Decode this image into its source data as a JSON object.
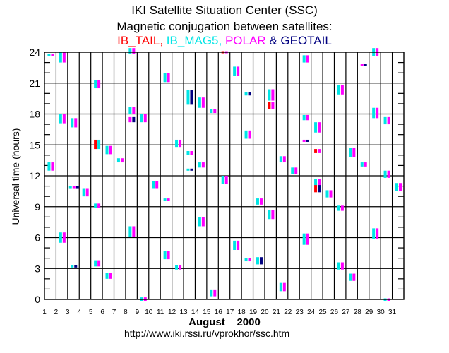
{
  "header": {
    "title": "IKI Satellite Situation Center (SSC)",
    "subtitle": "Magnetic conjugation between satellites:",
    "legend": [
      {
        "label": "IB_TAIL,",
        "color": "#ff0000"
      },
      {
        "label": "IB_MAG5,",
        "color": "#00e5e5"
      },
      {
        "label": "POLAR",
        "color": "#ff00ff"
      },
      {
        "label": "& GEOTAIL",
        "color": "#000080"
      }
    ]
  },
  "footer": {
    "url": "http://www.iki.rssi.ru/vprokhor/ssc.htm"
  },
  "chart_data": {
    "type": "scatter",
    "title": "Magnetic conjugation between satellites",
    "xlabel": "August    2000",
    "ylabel": "Universal time (hours)",
    "xlim": [
      1,
      32
    ],
    "ylim": [
      0,
      24
    ],
    "x_ticks": [
      1,
      2,
      3,
      4,
      5,
      6,
      7,
      8,
      9,
      10,
      11,
      12,
      13,
      14,
      15,
      16,
      17,
      18,
      19,
      20,
      21,
      22,
      23,
      24,
      25,
      26,
      27,
      28,
      29,
      30,
      31
    ],
    "y_ticks": [
      0,
      3,
      6,
      9,
      12,
      15,
      18,
      21,
      24
    ],
    "y_minor_step": 1,
    "grid": true,
    "colors": {
      "IB_TAIL": "#ff0000",
      "IB_MAG5": "#00e5e5",
      "POLAR": "#ff00ff",
      "GEOTAIL": "#000080"
    },
    "events": [
      {
        "day": 1.3,
        "start": 12.5,
        "end": 13.3,
        "sats": [
          "IB_MAG5",
          "POLAR"
        ]
      },
      {
        "day": 1.3,
        "start": 23.6,
        "end": 23.8,
        "sats": [
          "IB_MAG5",
          "POLAR"
        ]
      },
      {
        "day": 2.3,
        "start": 23.0,
        "end": 24.0,
        "sats": [
          "IB_MAG5",
          "POLAR"
        ]
      },
      {
        "day": 2.3,
        "start": 17.1,
        "end": 18.0,
        "sats": [
          "IB_MAG5",
          "POLAR"
        ]
      },
      {
        "day": 2.3,
        "start": 5.5,
        "end": 6.5,
        "sats": [
          "IB_MAG5",
          "POLAR"
        ]
      },
      {
        "day": 3.3,
        "start": 16.7,
        "end": 17.6,
        "sats": [
          "IB_MAG5",
          "POLAR"
        ]
      },
      {
        "day": 3.3,
        "start": 10.8,
        "end": 11.0,
        "sats": [
          "IB_MAG5",
          "POLAR",
          "GEOTAIL"
        ]
      },
      {
        "day": 3.3,
        "start": 3.1,
        "end": 3.3,
        "sats": [
          "IB_MAG5",
          "GEOTAIL"
        ]
      },
      {
        "day": 4.3,
        "start": 10.0,
        "end": 10.8,
        "sats": [
          "IB_MAG5",
          "POLAR"
        ]
      },
      {
        "day": 5.3,
        "start": 14.6,
        "end": 15.5,
        "sats": [
          "IB_TAIL",
          "IB_MAG5"
        ]
      },
      {
        "day": 5.3,
        "start": 20.5,
        "end": 21.3,
        "sats": [
          "IB_MAG5",
          "POLAR"
        ]
      },
      {
        "day": 5.3,
        "start": 8.9,
        "end": 9.3,
        "sats": [
          "IB_MAG5",
          "POLAR"
        ]
      },
      {
        "day": 5.3,
        "start": 3.2,
        "end": 3.8,
        "sats": [
          "IB_MAG5",
          "POLAR"
        ]
      },
      {
        "day": 6.3,
        "start": 14.1,
        "end": 14.9,
        "sats": [
          "IB_MAG5",
          "POLAR"
        ]
      },
      {
        "day": 6.3,
        "start": 2.0,
        "end": 2.6,
        "sats": [
          "IB_MAG5",
          "POLAR"
        ]
      },
      {
        "day": 7.3,
        "start": 13.3,
        "end": 13.7,
        "sats": [
          "IB_MAG5",
          "POLAR"
        ]
      },
      {
        "day": 8.3,
        "start": 23.8,
        "end": 24.4,
        "sats": [
          "IB_MAG5",
          "POLAR"
        ]
      },
      {
        "day": 8.3,
        "start": 18.0,
        "end": 18.7,
        "sats": [
          "IB_MAG5",
          "POLAR"
        ]
      },
      {
        "day": 8.3,
        "start": 17.2,
        "end": 17.7,
        "sats": [
          "POLAR",
          "GEOTAIL"
        ]
      },
      {
        "day": 8.3,
        "start": 6.1,
        "end": 7.1,
        "sats": [
          "IB_MAG5",
          "POLAR"
        ]
      },
      {
        "day": 9.3,
        "start": 17.2,
        "end": 18.0,
        "sats": [
          "IB_MAG5",
          "POLAR"
        ]
      },
      {
        "day": 9.3,
        "start": -0.2,
        "end": 0.2,
        "sats": [
          "IB_MAG5",
          "POLAR"
        ]
      },
      {
        "day": 10.3,
        "start": 10.8,
        "end": 11.5,
        "sats": [
          "IB_MAG5",
          "POLAR"
        ]
      },
      {
        "day": 11.3,
        "start": 21.1,
        "end": 22.0,
        "sats": [
          "IB_MAG5",
          "POLAR"
        ]
      },
      {
        "day": 11.3,
        "start": 9.6,
        "end": 9.8,
        "sats": [
          "IB_MAG5",
          "POLAR"
        ]
      },
      {
        "day": 11.3,
        "start": 3.9,
        "end": 4.7,
        "sats": [
          "IB_MAG5",
          "POLAR"
        ]
      },
      {
        "day": 12.3,
        "start": 14.8,
        "end": 15.5,
        "sats": [
          "IB_MAG5",
          "POLAR"
        ]
      },
      {
        "day": 12.3,
        "start": 2.9,
        "end": 3.3,
        "sats": [
          "IB_MAG5",
          "POLAR"
        ]
      },
      {
        "day": 13.3,
        "start": 14.0,
        "end": 14.4,
        "sats": [
          "IB_MAG5",
          "POLAR"
        ]
      },
      {
        "day": 13.3,
        "start": 12.5,
        "end": 12.7,
        "sats": [
          "IB_MAG5",
          "GEOTAIL"
        ]
      },
      {
        "day": 13.3,
        "start": 18.9,
        "end": 20.3,
        "sats": [
          "IB_MAG5",
          "GEOTAIL"
        ]
      },
      {
        "day": 14.3,
        "start": 18.6,
        "end": 19.6,
        "sats": [
          "IB_MAG5",
          "POLAR"
        ]
      },
      {
        "day": 14.3,
        "start": 12.8,
        "end": 13.3,
        "sats": [
          "IB_MAG5",
          "POLAR"
        ]
      },
      {
        "day": 14.3,
        "start": 7.1,
        "end": 8.0,
        "sats": [
          "IB_MAG5",
          "POLAR"
        ]
      },
      {
        "day": 15.3,
        "start": 18.1,
        "end": 18.5,
        "sats": [
          "IB_MAG5",
          "POLAR"
        ]
      },
      {
        "day": 15.3,
        "start": 0.3,
        "end": 0.9,
        "sats": [
          "IB_MAG5",
          "POLAR"
        ]
      },
      {
        "day": 16.3,
        "start": 23.9,
        "end": 24.1,
        "sats": [
          "IB_TAIL",
          "POLAR"
        ]
      },
      {
        "day": 16.3,
        "start": 11.2,
        "end": 12.0,
        "sats": [
          "IB_MAG5",
          "POLAR"
        ]
      },
      {
        "day": 17.3,
        "start": 21.7,
        "end": 22.6,
        "sats": [
          "IB_MAG5",
          "POLAR"
        ]
      },
      {
        "day": 17.3,
        "start": 4.8,
        "end": 5.7,
        "sats": [
          "IB_MAG5",
          "POLAR"
        ]
      },
      {
        "day": 18.3,
        "start": 15.6,
        "end": 16.4,
        "sats": [
          "IB_MAG5",
          "POLAR"
        ]
      },
      {
        "day": 18.3,
        "start": 3.7,
        "end": 4.0,
        "sats": [
          "IB_MAG5",
          "POLAR"
        ]
      },
      {
        "day": 18.3,
        "start": 19.8,
        "end": 20.1,
        "sats": [
          "IB_MAG5",
          "GEOTAIL"
        ]
      },
      {
        "day": 19.3,
        "start": 9.2,
        "end": 9.8,
        "sats": [
          "IB_MAG5",
          "POLAR"
        ]
      },
      {
        "day": 19.3,
        "start": 3.4,
        "end": 4.1,
        "sats": [
          "IB_MAG5",
          "GEOTAIL"
        ]
      },
      {
        "day": 20.3,
        "start": 19.3,
        "end": 20.4,
        "sats": [
          "IB_MAG5",
          "POLAR"
        ]
      },
      {
        "day": 20.3,
        "start": 18.5,
        "end": 19.2,
        "sats": [
          "IB_TAIL",
          "POLAR"
        ]
      },
      {
        "day": 20.3,
        "start": 7.8,
        "end": 8.7,
        "sats": [
          "IB_MAG5",
          "POLAR"
        ]
      },
      {
        "day": 21.3,
        "start": 0.8,
        "end": 1.6,
        "sats": [
          "IB_MAG5",
          "POLAR"
        ]
      },
      {
        "day": 21.3,
        "start": 13.3,
        "end": 13.9,
        "sats": [
          "IB_MAG5",
          "POLAR"
        ]
      },
      {
        "day": 22.3,
        "start": 12.2,
        "end": 12.8,
        "sats": [
          "IB_MAG5",
          "POLAR"
        ]
      },
      {
        "day": 23.3,
        "start": 23.0,
        "end": 23.7,
        "sats": [
          "IB_MAG5",
          "POLAR"
        ]
      },
      {
        "day": 23.3,
        "start": 17.4,
        "end": 17.9,
        "sats": [
          "IB_MAG5",
          "POLAR"
        ]
      },
      {
        "day": 23.3,
        "start": 15.3,
        "end": 15.5,
        "sats": [
          "POLAR",
          "GEOTAIL"
        ]
      },
      {
        "day": 23.3,
        "start": 5.3,
        "end": 6.4,
        "sats": [
          "IB_MAG5",
          "POLAR"
        ]
      },
      {
        "day": 24.3,
        "start": 16.2,
        "end": 17.2,
        "sats": [
          "IB_MAG5",
          "POLAR"
        ]
      },
      {
        "day": 24.3,
        "start": 14.2,
        "end": 14.6,
        "sats": [
          "IB_TAIL",
          "POLAR"
        ]
      },
      {
        "day": 24.3,
        "start": 11.0,
        "end": 11.7,
        "sats": [
          "IB_MAG5",
          "POLAR"
        ]
      },
      {
        "day": 24.3,
        "start": 10.4,
        "end": 11.1,
        "sats": [
          "IB_TAIL",
          "GEOTAIL"
        ]
      },
      {
        "day": 25.3,
        "start": 9.9,
        "end": 10.6,
        "sats": [
          "IB_MAG5",
          "POLAR"
        ]
      },
      {
        "day": 26.3,
        "start": 19.9,
        "end": 20.8,
        "sats": [
          "IB_MAG5",
          "POLAR"
        ]
      },
      {
        "day": 26.3,
        "start": 8.6,
        "end": 9.1,
        "sats": [
          "IB_MAG5",
          "POLAR"
        ]
      },
      {
        "day": 26.3,
        "start": 2.9,
        "end": 3.6,
        "sats": [
          "IB_MAG5",
          "POLAR"
        ]
      },
      {
        "day": 27.3,
        "start": 13.8,
        "end": 14.7,
        "sats": [
          "IB_MAG5",
          "POLAR"
        ]
      },
      {
        "day": 27.3,
        "start": 1.8,
        "end": 2.5,
        "sats": [
          "IB_MAG5",
          "POLAR"
        ]
      },
      {
        "day": 28.3,
        "start": 12.9,
        "end": 13.3,
        "sats": [
          "IB_MAG5",
          "POLAR"
        ]
      },
      {
        "day": 28.3,
        "start": 22.7,
        "end": 22.9,
        "sats": [
          "POLAR",
          "GEOTAIL"
        ]
      },
      {
        "day": 29.3,
        "start": 23.6,
        "end": 24.4,
        "sats": [
          "IB_MAG5",
          "POLAR"
        ]
      },
      {
        "day": 29.3,
        "start": 17.6,
        "end": 18.6,
        "sats": [
          "IB_MAG5",
          "POLAR"
        ]
      },
      {
        "day": 29.3,
        "start": 5.9,
        "end": 6.9,
        "sats": [
          "IB_MAG5",
          "POLAR"
        ]
      },
      {
        "day": 30.3,
        "start": 17.0,
        "end": 17.7,
        "sats": [
          "IB_MAG5",
          "POLAR"
        ]
      },
      {
        "day": 30.3,
        "start": 11.8,
        "end": 12.5,
        "sats": [
          "IB_MAG5",
          "POLAR"
        ]
      },
      {
        "day": 30.3,
        "start": -0.2,
        "end": 0.1,
        "sats": [
          "IB_MAG5",
          "POLAR"
        ]
      },
      {
        "day": 31.3,
        "start": 10.5,
        "end": 11.3,
        "sats": [
          "IB_MAG5",
          "POLAR"
        ]
      }
    ]
  }
}
